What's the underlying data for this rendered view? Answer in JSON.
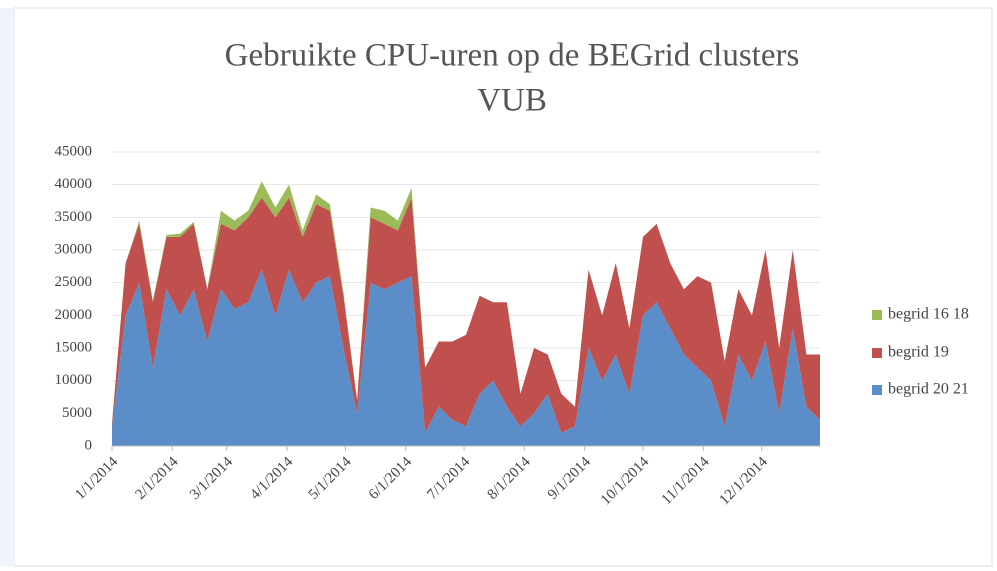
{
  "chart_data": {
    "type": "stacked_area",
    "title": [
      "Gebruikte CPU-uren op de BEGrid clusters",
      "VUB"
    ],
    "x": [
      "1/1/2014",
      "1/8/2014",
      "1/15/2014",
      "1/22/2014",
      "1/29/2014",
      "2/5/2014",
      "2/12/2014",
      "2/19/2014",
      "2/26/2014",
      "3/5/2014",
      "3/12/2014",
      "3/19/2014",
      "3/26/2014",
      "4/2/2014",
      "4/9/2014",
      "4/16/2014",
      "4/23/2014",
      "4/30/2014",
      "5/7/2014",
      "5/14/2014",
      "5/21/2014",
      "5/28/2014",
      "6/4/2014",
      "6/11/2014",
      "6/18/2014",
      "6/25/2014",
      "7/2/2014",
      "7/9/2014",
      "7/16/2014",
      "7/23/2014",
      "7/30/2014",
      "8/6/2014",
      "8/13/2014",
      "8/20/2014",
      "8/27/2014",
      "9/3/2014",
      "9/10/2014",
      "9/17/2014",
      "9/24/2014",
      "10/1/2014",
      "10/8/2014",
      "10/15/2014",
      "10/22/2014",
      "10/29/2014",
      "11/5/2014",
      "11/12/2014",
      "11/19/2014",
      "11/26/2014",
      "12/3/2014",
      "12/10/2014",
      "12/17/2014",
      "12/24/2014",
      "12/31/2014"
    ],
    "series": [
      {
        "name": "begrid 20 21",
        "color": "#5b8ec9",
        "values": [
          3000,
          20000,
          25000,
          12000,
          24000,
          20000,
          24000,
          16000,
          24000,
          21000,
          22000,
          27000,
          20000,
          27000,
          22000,
          25000,
          26000,
          15000,
          5000,
          25000,
          24000,
          25000,
          26000,
          2000,
          6000,
          4000,
          3000,
          8000,
          10000,
          6000,
          3000,
          5000,
          8000,
          2000,
          3000,
          15000,
          10000,
          14000,
          8000,
          20000,
          22000,
          18000,
          14000,
          12000,
          10000,
          3000,
          14000,
          10000,
          16000,
          5000,
          18000,
          6000,
          4000
        ]
      },
      {
        "name": "begrid 19",
        "color": "#c0504d",
        "values": [
          500,
          8000,
          9000,
          10000,
          8000,
          12000,
          10000,
          8000,
          10000,
          12000,
          13000,
          11000,
          15000,
          11000,
          10000,
          12000,
          10000,
          8000,
          2000,
          10000,
          10000,
          8000,
          12000,
          10000,
          10000,
          12000,
          14000,
          15000,
          12000,
          16000,
          5000,
          10000,
          6000,
          6000,
          3000,
          12000,
          10000,
          14000,
          10000,
          12000,
          12000,
          10000,
          10000,
          14000,
          15000,
          10000,
          10000,
          10000,
          14000,
          10000,
          12000,
          8000,
          10000
        ]
      },
      {
        "name": "begrid 16 18",
        "color": "#9bbb59",
        "values": [
          0,
          0,
          500,
          300,
          300,
          500,
          300,
          0,
          2000,
          1500,
          1000,
          2500,
          1500,
          2000,
          1000,
          1500,
          1000,
          500,
          0,
          1500,
          2000,
          1500,
          1500,
          0,
          0,
          0,
          0,
          0,
          0,
          0,
          0,
          0,
          0,
          0,
          0,
          0,
          0,
          0,
          0,
          0,
          0,
          0,
          0,
          0,
          0,
          0,
          0,
          0,
          0,
          0,
          0,
          0,
          0
        ]
      }
    ],
    "xlim": [
      "1/1/2014",
      "12/31/2014"
    ],
    "xticks": [
      "1/1/2014",
      "2/1/2014",
      "3/1/2014",
      "4/1/2014",
      "5/1/2014",
      "6/1/2014",
      "7/1/2014",
      "8/1/2014",
      "9/1/2014",
      "10/1/2014",
      "11/1/2014",
      "12/1/2014"
    ],
    "ylim": [
      0,
      45000
    ],
    "yticks": [
      0,
      5000,
      10000,
      15000,
      20000,
      25000,
      30000,
      35000,
      40000,
      45000
    ],
    "grid": true,
    "legend": "right"
  }
}
